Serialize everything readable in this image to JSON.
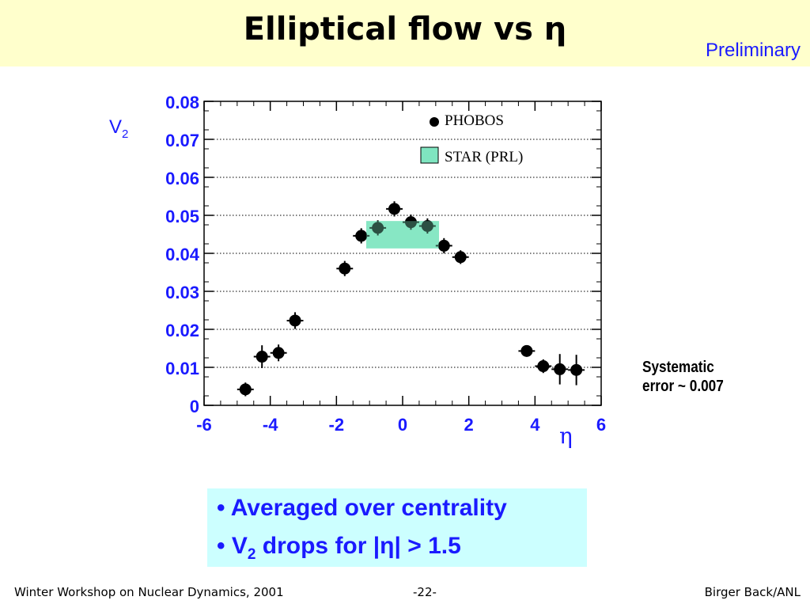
{
  "slide": {
    "title": "Elliptical flow vs η",
    "stamp": "Preliminary",
    "note_line1": "Systematic",
    "note_line2": "error ~ 0.007",
    "bullets": [
      {
        "pre": "• Averaged over centrality",
        "sub": "",
        "post": ""
      },
      {
        "pre": "• V",
        "sub": "2",
        "post": " drops for |η| > 1.5"
      }
    ]
  },
  "footer": {
    "left": "Winter Workshop on Nuclear Dynamics, 2001",
    "center": "-22-",
    "right": "Birger Back/ANL"
  },
  "chart_data": {
    "type": "scatter",
    "ylabel_main": "V",
    "ylabel_sub": "2",
    "xlabel": "η",
    "xlim": [
      -6,
      6
    ],
    "ylim": [
      0,
      0.08
    ],
    "x_ticks": [
      "-6",
      "-4",
      "-2",
      "0",
      "2",
      "4",
      "6"
    ],
    "y_ticks": [
      "0",
      "0.01",
      "0.02",
      "0.03",
      "0.04",
      "0.05",
      "0.06",
      "0.07",
      "0.08"
    ],
    "grid": "horizontal dotted",
    "legend_position": "top-right",
    "colors": {
      "axis_text": "#1a1aff",
      "star_band": "#7fe5c0",
      "phobos": "#000000"
    },
    "series": [
      {
        "name": "PHOBOS",
        "marker": "filled-circle",
        "points": [
          {
            "x": -4.75,
            "y": 0.0042,
            "yerr": 0.0018
          },
          {
            "x": -4.25,
            "y": 0.0128,
            "yerr": 0.003
          },
          {
            "x": -3.75,
            "y": 0.0138,
            "yerr": 0.0022
          },
          {
            "x": -3.25,
            "y": 0.0223,
            "yerr": 0.0022
          },
          {
            "x": -1.75,
            "y": 0.036,
            "yerr": 0.002
          },
          {
            "x": -1.25,
            "y": 0.0446,
            "yerr": 0.002
          },
          {
            "x": -0.75,
            "y": 0.0467,
            "yerr": 0.002
          },
          {
            "x": -0.25,
            "y": 0.0517,
            "yerr": 0.002
          },
          {
            "x": 0.25,
            "y": 0.0482,
            "yerr": 0.002
          },
          {
            "x": 0.75,
            "y": 0.0472,
            "yerr": 0.002
          },
          {
            "x": 1.25,
            "y": 0.042,
            "yerr": 0.002
          },
          {
            "x": 1.75,
            "y": 0.039,
            "yerr": 0.0018
          },
          {
            "x": 3.75,
            "y": 0.0143,
            "yerr": 0.0015
          },
          {
            "x": 4.25,
            "y": 0.0103,
            "yerr": 0.0018
          },
          {
            "x": 4.75,
            "y": 0.0095,
            "yerr": 0.004
          },
          {
            "x": 5.25,
            "y": 0.0093,
            "yerr": 0.004
          }
        ]
      },
      {
        "name": "STAR (PRL)",
        "marker": "band",
        "band": {
          "x": [
            -1.1,
            1.1
          ],
          "y": [
            0.0413,
            0.0485
          ]
        }
      }
    ]
  }
}
